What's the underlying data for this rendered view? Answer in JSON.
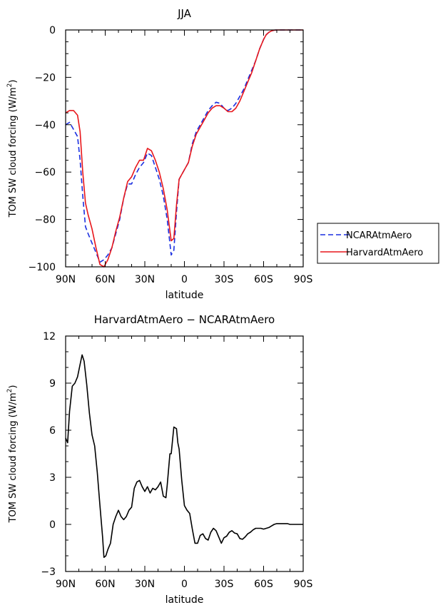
{
  "chart_data": [
    {
      "type": "line",
      "title": "JJA",
      "xlabel": "latitude",
      "ylabel": "TOM SW cloud forcing (W/m",
      "ylabel_sup": "2",
      "ylabel_close": ")",
      "xlim": [
        90,
        -90
      ],
      "ylim": [
        -100,
        0
      ],
      "x_ticks": [
        90,
        60,
        30,
        0,
        -30,
        -60,
        -90
      ],
      "x_tick_labels": [
        "90N",
        "60N",
        "30N",
        "0",
        "30S",
        "60S",
        "90S"
      ],
      "y_ticks": [
        0,
        -20,
        -40,
        -60,
        -80,
        -100
      ],
      "y_tick_labels": [
        "0",
        "−20",
        "−40",
        "−60",
        "−80",
        "−100"
      ],
      "legend": {
        "placement": "outside-right"
      },
      "series": [
        {
          "name": "NCARAtmAero",
          "color": "#1a2ee0",
          "dash": "dashed",
          "x": [
            90,
            87,
            84,
            81,
            79,
            77,
            75,
            73,
            70,
            67,
            64,
            61,
            58,
            55,
            52,
            49,
            46,
            43,
            40,
            37,
            34,
            31,
            28,
            25,
            22,
            19,
            16,
            13,
            10,
            8,
            6,
            4,
            2,
            0,
            -3,
            -6,
            -9,
            -12,
            -15,
            -18,
            -21,
            -24,
            -27,
            -30,
            -33,
            -36,
            -39,
            -42,
            -45,
            -48,
            -51,
            -54,
            -57,
            -60,
            -62,
            -64,
            -66,
            -68,
            -70,
            -72,
            -75,
            -78,
            -81,
            -84,
            -87,
            -90
          ],
          "y": [
            -40,
            -39,
            -42,
            -45,
            -55,
            -70,
            -83,
            -86,
            -90,
            -94,
            -98,
            -97,
            -95,
            -92,
            -86,
            -80,
            -71,
            -65,
            -65,
            -61,
            -58,
            -56,
            -52,
            -53,
            -58,
            -63,
            -70,
            -80,
            -95,
            -93,
            -77,
            -63,
            -61,
            -59,
            -56,
            -48,
            -43,
            -40,
            -37,
            -34,
            -32,
            -30.5,
            -31,
            -33,
            -34,
            -33,
            -31,
            -28,
            -25,
            -21,
            -17,
            -13,
            -8,
            -4,
            -2,
            -1,
            -0.4,
            -0.1,
            0,
            0,
            0,
            0,
            0,
            0,
            0,
            0
          ]
        },
        {
          "name": "HarvardAtmAero",
          "color": "#e8161b",
          "dash": "solid",
          "x": [
            90,
            87,
            84,
            81,
            79,
            77,
            75,
            73,
            70,
            67,
            64,
            61,
            58,
            55,
            52,
            49,
            46,
            43,
            40,
            37,
            34,
            31,
            28,
            25,
            22,
            19,
            16,
            13,
            10,
            8,
            6,
            4,
            2,
            0,
            -3,
            -6,
            -9,
            -12,
            -15,
            -18,
            -21,
            -24,
            -27,
            -30,
            -33,
            -36,
            -39,
            -42,
            -45,
            -48,
            -51,
            -54,
            -57,
            -60,
            -62,
            -64,
            -66,
            -68,
            -70,
            -72,
            -75,
            -78,
            -81,
            -84,
            -87,
            -90
          ],
          "y": [
            -35,
            -34,
            -34,
            -36,
            -43,
            -60,
            -73,
            -78,
            -84,
            -92,
            -99,
            -100,
            -97,
            -92,
            -85,
            -79,
            -71,
            -64,
            -62,
            -58,
            -55,
            -55,
            -50,
            -51,
            -55,
            -60,
            -67,
            -76,
            -89,
            -88,
            -74,
            -63,
            -61,
            -59,
            -56,
            -49,
            -44,
            -41,
            -38,
            -35,
            -33,
            -32,
            -32,
            -33,
            -34.5,
            -34.5,
            -33,
            -30,
            -26,
            -22,
            -18,
            -13,
            -8,
            -4,
            -2,
            -1,
            -0.4,
            -0.1,
            0,
            0,
            0,
            0,
            0,
            0,
            0,
            0
          ]
        }
      ]
    },
    {
      "type": "line",
      "title": "HarvardAtmAero − NCARAtmAero",
      "xlabel": "latitude",
      "ylabel": "TOM SW cloud forcing (W/m",
      "ylabel_sup": "2",
      "ylabel_close": ")",
      "xlim": [
        90,
        -90
      ],
      "ylim": [
        -3,
        12
      ],
      "x_ticks": [
        90,
        60,
        30,
        0,
        -30,
        -60,
        -90
      ],
      "x_tick_labels": [
        "90N",
        "60N",
        "30N",
        "0",
        "30S",
        "60S",
        "90S"
      ],
      "y_ticks": [
        12,
        9,
        6,
        3,
        0,
        -3
      ],
      "y_tick_labels": [
        "12",
        "9",
        "6",
        "3",
        "0",
        "−3"
      ],
      "series": [
        {
          "color": "#000000",
          "dash": "solid",
          "x": [
            90,
            88.5,
            87,
            85,
            83,
            81,
            79,
            77.5,
            76,
            74,
            72,
            70,
            68,
            66,
            64,
            62,
            61,
            59.5,
            58,
            56,
            54,
            52,
            50,
            48,
            46,
            44,
            42,
            40,
            38,
            36,
            34,
            32,
            30,
            28,
            26,
            24,
            22,
            20,
            18,
            16,
            14,
            13,
            11,
            10,
            8,
            6,
            5,
            4,
            2,
            0,
            -2,
            -4,
            -6,
            -8,
            -10,
            -12,
            -14,
            -16,
            -18,
            -20,
            -22,
            -24,
            -26,
            -28,
            -30,
            -32,
            -34,
            -36,
            -38,
            -40,
            -42,
            -44,
            -46,
            -48,
            -50,
            -52,
            -54,
            -56,
            -58,
            -60,
            -62,
            -64,
            -66,
            -68,
            -70,
            -72,
            -74,
            -76,
            -78,
            -80,
            -83,
            -86,
            -90
          ],
          "y": [
            5.5,
            5.2,
            7.2,
            8.8,
            9.0,
            9.4,
            10.2,
            10.8,
            10.4,
            8.9,
            7.1,
            5.7,
            5.0,
            3.3,
            1.2,
            -0.8,
            -2.1,
            -2.0,
            -1.6,
            -1.2,
            0,
            0.5,
            0.9,
            0.5,
            0.3,
            0.5,
            0.9,
            1.1,
            2.3,
            2.7,
            2.8,
            2.4,
            2.1,
            2.4,
            2.0,
            2.3,
            2.2,
            2.4,
            2.7,
            1.8,
            1.7,
            2.5,
            4.5,
            4.5,
            6.2,
            6.1,
            5.2,
            4.8,
            2.8,
            1.2,
            0.9,
            0.7,
            -0.3,
            -1.2,
            -1.2,
            -0.7,
            -0.6,
            -0.9,
            -1.0,
            -0.5,
            -0.25,
            -0.4,
            -0.8,
            -1.2,
            -0.85,
            -0.75,
            -0.5,
            -0.4,
            -0.55,
            -0.6,
            -0.9,
            -0.95,
            -0.8,
            -0.6,
            -0.5,
            -0.35,
            -0.25,
            -0.25,
            -0.25,
            -0.3,
            -0.25,
            -0.2,
            -0.1,
            0,
            0.05,
            0.05,
            0.05,
            0.05,
            0.05,
            0,
            0,
            0,
            0
          ]
        }
      ]
    }
  ]
}
